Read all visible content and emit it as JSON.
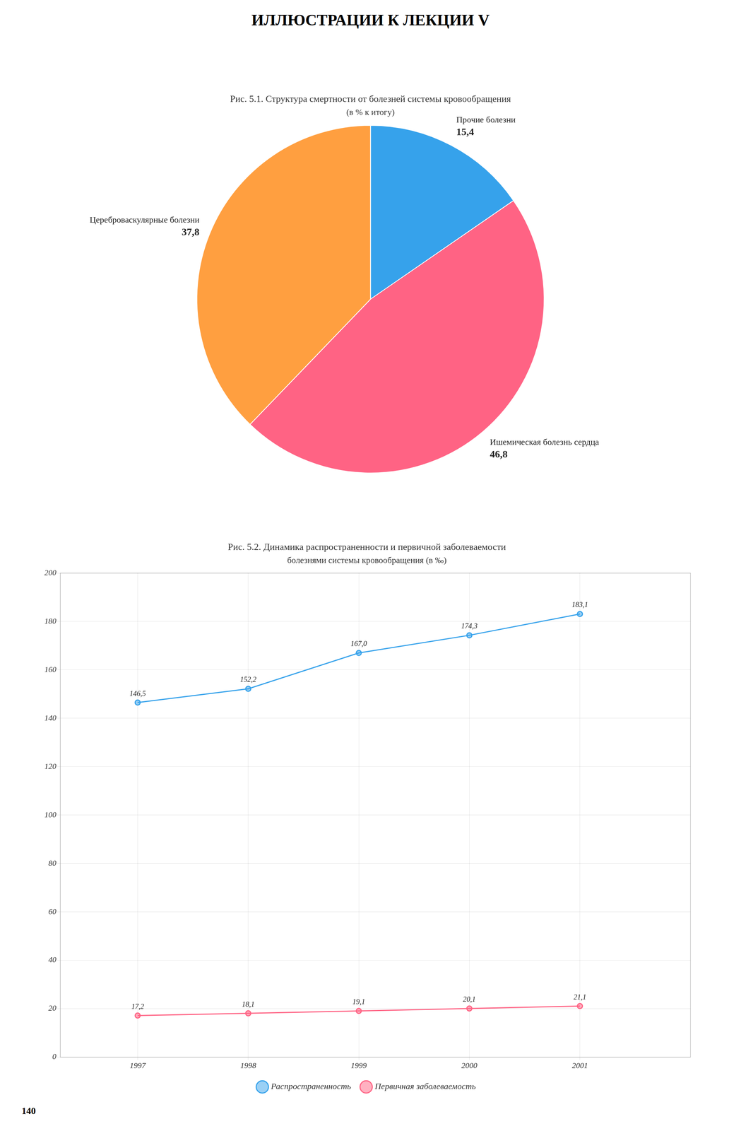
{
  "title": "ИЛЛЮСТРАЦИИ К ЛЕКЦИИ V",
  "annotations": [
    "140"
  ],
  "chart_data": [
    {
      "type": "pie",
      "title": "Рис. 5.1. Структура смертности от болезней системы кровообращения",
      "subtitle": "(в % к итогу)",
      "categories": [
        "Прочие болезни",
        "Ишемическая болезнь сердца",
        "Цереброваскулярные болезни"
      ],
      "values": [
        15.4,
        46.8,
        37.8
      ],
      "value_labels": [
        "15,4",
        "46,8",
        "37,8"
      ],
      "data_labels": true
    },
    {
      "type": "line",
      "title": "Рис. 5.2. Динамика распространенности и первичной заболеваемости",
      "subtitle": "болезнями системы кровообращения (в ‰)",
      "x": [
        1997,
        1998,
        1999,
        2000,
        2001
      ],
      "series": [
        {
          "name": "Распространенность",
          "values": [
            146.5,
            152.2,
            167.0,
            174.3,
            183.1
          ],
          "value_labels": [
            "146,5",
            "152,2",
            "167,0",
            "174,3",
            "183,1"
          ],
          "marker": "circle"
        },
        {
          "name": "Первичная заболеваемость",
          "values": [
            17.2,
            18.1,
            19.1,
            20.1,
            21.1
          ],
          "value_labels": [
            "17,2",
            "18,1",
            "19,1",
            "20,1",
            "21,1"
          ],
          "marker": "circle"
        }
      ],
      "xlim": [
        1996.3,
        2002.0
      ],
      "xticks": [
        1997,
        1998,
        1999,
        2000,
        2001
      ],
      "ylim": [
        0,
        200
      ],
      "yticks": [
        0,
        20,
        40,
        60,
        80,
        100,
        120,
        140,
        160,
        180,
        200
      ],
      "grid": true,
      "legend": "bottom",
      "data_labels": true
    }
  ]
}
